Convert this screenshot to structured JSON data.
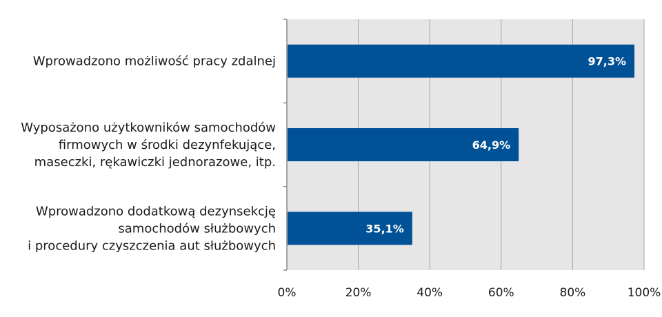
{
  "chart_data": {
    "type": "bar",
    "orientation": "horizontal",
    "title": "",
    "xlabel": "",
    "ylabel": "",
    "xlim": [
      0,
      100
    ],
    "xticks": [
      0,
      20,
      40,
      60,
      80,
      100
    ],
    "tick_suffix": "%",
    "grid": true,
    "categories": [
      [
        "Wprowadzono możliwość pracy zdalnej"
      ],
      [
        "Wyposażono użytkowników samochodów",
        "firmowych w środki dezynfekujące,",
        "maseczki, rękawiczki jednorazowe, itp."
      ],
      [
        "Wprowadzono dodatkową dezynsekcję",
        "samochodów służbowych",
        "i procedury czyszczenia aut służbowych"
      ]
    ],
    "values": [
      97.3,
      64.9,
      35.1
    ],
    "data_labels": [
      "97,3%",
      "64,9%",
      "35,1%"
    ],
    "colors": {
      "bar": "#005196",
      "plot_background": "#e6e6e6",
      "grid": "#a6a6a6",
      "axis": "#8c8c8c",
      "text": "#1a1a1a",
      "data_label": "#ffffff"
    }
  }
}
